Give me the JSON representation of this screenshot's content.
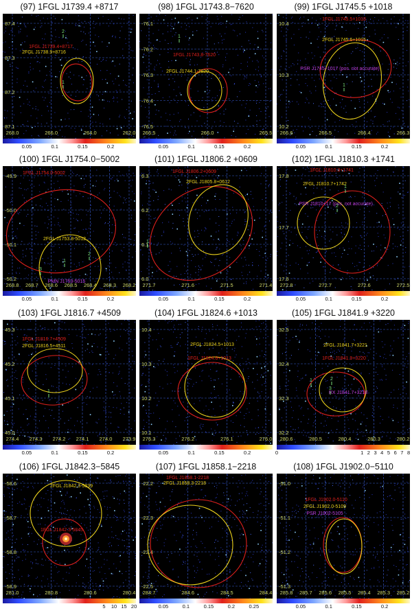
{
  "figure": {
    "panels": [
      {
        "title": "(97) 1FGL J1739.4 +8717",
        "y_ticks": [
          "87.4",
          "87.3",
          "87.2",
          "87.1"
        ],
        "x_ticks": [
          "268.0",
          "266.0",
          "264.0",
          "262.0"
        ],
        "sources": [
          {
            "label": "1FGL J1739.4+8717",
            "color": "#e0201c"
          },
          {
            "label": "2FGL J1738.9+8716",
            "color": "#ecd21c"
          }
        ],
        "markers": [
          "2",
          "1"
        ],
        "colorbar": {
          "ticks": [
            "0.05",
            "0.1",
            "0.15",
            "0.2"
          ]
        }
      },
      {
        "title": "(98) 1FGL J1743.8−7620",
        "y_ticks": [
          "-76.1",
          "-76.2",
          "-76.3",
          "-76.4",
          "-76.5"
        ],
        "x_ticks": [
          "266.5",
          "266.0",
          "265.5"
        ],
        "sources": [
          {
            "label": "1FGL J1743.8-7620",
            "color": "#e0201c"
          },
          {
            "label": "2FGL J1744.1-7620",
            "color": "#ecd21c"
          }
        ],
        "markers": [
          "1"
        ],
        "colorbar": {
          "ticks": [
            "0.05",
            "0.1",
            "0.15",
            "0.2"
          ]
        }
      },
      {
        "title": "(99) 1FGL J1745.5 +1018",
        "y_ticks": [
          "10.4",
          "10.3",
          "10.2"
        ],
        "x_ticks": [
          "266.6",
          "266.5",
          "266.4",
          "266.3"
        ],
        "sources": [
          {
            "label": "1FGL J1745.5+1018",
            "color": "#e0201c"
          },
          {
            "label": "2FGL J1745.6+1015",
            "color": "#ecd21c"
          },
          {
            "label": "PSR J1745+1017 (pos. not accurate)",
            "color": "#c040e0"
          }
        ],
        "markers": [
          "1"
        ],
        "colorbar": {
          "ticks": [
            "0.05",
            "0.1",
            "0.15",
            "0.2"
          ]
        }
      },
      {
        "title": "(100) 1FGL J1754.0−5002",
        "y_ticks": [
          "-49.9",
          "-50.0",
          "-50.1",
          "-50.2"
        ],
        "x_ticks": [
          "268.8",
          "268.7",
          "268.6",
          "268.5",
          "268.4",
          "268.3",
          "268.2"
        ],
        "sources": [
          {
            "label": "1FGL J1754.0-5002",
            "color": "#e0201c"
          },
          {
            "label": "2FGL J1753.8-5012",
            "color": "#ecd21c"
          },
          {
            "label": "PMN J1753-5015",
            "color": "#c040e0"
          }
        ],
        "markers": [
          "2",
          "1",
          "3"
        ],
        "colorbar": {
          "ticks": [
            "0.05",
            "0.1",
            "0.15",
            "0.2"
          ]
        }
      },
      {
        "title": "(101) 1FGL J1806.2 +0609",
        "y_ticks": [
          "6.3",
          "6.2",
          "6.1",
          "6.0"
        ],
        "x_ticks": [
          "271.7",
          "271.6",
          "271.5",
          "271.4"
        ],
        "sources": [
          {
            "label": "1FGL J1806.2+0609",
            "color": "#e0201c"
          },
          {
            "label": "2FGL J1805.8+0612",
            "color": "#ecd21c"
          }
        ],
        "markers": [
          "1"
        ],
        "colorbar": {
          "ticks": [
            "0.05",
            "0.1",
            "0.15",
            "0.2"
          ]
        }
      },
      {
        "title": "(102) 1FGL J1810.3 +1741",
        "y_ticks": [
          "17.8",
          "17.7",
          "17.6"
        ],
        "x_ticks": [
          "272.8",
          "272.7",
          "272.6",
          "272.5"
        ],
        "sources": [
          {
            "label": "1FGL J1810.3+1741",
            "color": "#e0201c"
          },
          {
            "label": "2FGL J1810.7+1742",
            "color": "#ecd21c"
          },
          {
            "label": "PSR J1810+17 (pos. not accurate)",
            "color": "#c040e0"
          }
        ],
        "markers": [
          "1",
          "2"
        ],
        "colorbar": {
          "ticks": [
            "0.05",
            "0.1",
            "0.15",
            "0.2"
          ]
        }
      },
      {
        "title": "(103) 1FGL J1816.7 +4509",
        "y_ticks": [
          "45.3",
          "45.2",
          "45.1",
          "45.0"
        ],
        "x_ticks": [
          "274.4",
          "274.3",
          "274.2",
          "274.1",
          "274.0",
          "273.9"
        ],
        "sources": [
          {
            "label": "1FGL J1816.7+4509",
            "color": "#e0201c"
          },
          {
            "label": "2FGL J1816.5+4511",
            "color": "#ecd21c"
          }
        ],
        "markers": [
          "1"
        ],
        "colorbar": {
          "ticks": [
            "0.05",
            "0.1",
            "0.15",
            "0.2"
          ]
        }
      },
      {
        "title": "(104) 1FGL J1824.6 +1013",
        "y_ticks": [
          "10.4",
          "10.3",
          "10.2",
          "10.1"
        ],
        "x_ticks": [
          "276.3",
          "276.2",
          "276.1",
          "276.0"
        ],
        "sources": [
          {
            "label": "2FGL J1824.5+1013",
            "color": "#ecd21c"
          },
          {
            "label": "1FGL J1824.6+1013",
            "color": "#e0201c"
          }
        ],
        "markers": [],
        "colorbar": {
          "ticks": [
            "0.05",
            "0.1",
            "0.15",
            "0.2"
          ]
        }
      },
      {
        "title": "(105) 1FGL J1841.9 +3220",
        "y_ticks": [
          "32.5",
          "32.4",
          "32.3",
          "32.2"
        ],
        "x_ticks": [
          "280.6",
          "280.5",
          "280.4",
          "280.3",
          "280.2"
        ],
        "sources": [
          {
            "label": "2FGL J1841.7+3221",
            "color": "#ecd21c"
          },
          {
            "label": "1FGL J1841.9+3220",
            "color": "#e0201c"
          },
          {
            "label": "RX J1841.7+3218",
            "color": "#c040e0"
          }
        ],
        "markers": [
          "1",
          "2",
          "3"
        ],
        "colorbar": {
          "ticks": [
            "0",
            "1",
            "2",
            "3",
            "4",
            "5",
            "6",
            "7",
            "8"
          ]
        }
      },
      {
        "title": "(106) 1FGL J1842.3−5845",
        "y_ticks": [
          "-58.6",
          "-58.7",
          "-58.8",
          "-58.9"
        ],
        "x_ticks": [
          "281.0",
          "280.8",
          "280.6",
          "280.4"
        ],
        "sources": [
          {
            "label": "2FGL J1842.3-5839",
            "color": "#ecd21c"
          },
          {
            "label": "1FGL J1842.3-5845",
            "color": "#e0201c"
          }
        ],
        "markers": [],
        "colorbar": {
          "ticks": [
            "5",
            "10",
            "15",
            "20"
          ]
        }
      },
      {
        "title": "(107) 1FGL J1858.1−2218",
        "y_ticks": [
          "-22.2",
          "-22.3",
          "-22.4",
          "-22.5"
        ],
        "x_ticks": [
          "284.7",
          "284.6",
          "284.5",
          "284.4"
        ],
        "sources": [
          {
            "label": "1FGL J1858.1-2218",
            "color": "#e0201c"
          },
          {
            "label": "2FGL J1858.3-2218",
            "color": "#ecd21c"
          }
        ],
        "markers": [],
        "colorbar": {
          "ticks": [
            "0.05",
            "0.1",
            "0.15",
            "0.2",
            "0.25"
          ]
        }
      },
      {
        "title": "(108) 1FGL J1902.0−5110",
        "y_ticks": [
          "-51.0",
          "-51.1",
          "-51.2",
          "-51.3"
        ],
        "x_ticks": [
          "285.8",
          "285.7",
          "285.6",
          "285.5",
          "285.4",
          "285.3",
          "285.2"
        ],
        "sources": [
          {
            "label": "1FGL J1902.0-5110",
            "color": "#e0201c"
          },
          {
            "label": "2FGL J1902.0-5109",
            "color": "#ecd21c"
          },
          {
            "label": "PSR J1902-5105",
            "color": "#c040e0"
          }
        ],
        "markers": [],
        "colorbar": {
          "ticks": [
            "0.05",
            "0.1",
            "0.15",
            "0.2"
          ]
        }
      }
    ],
    "colors": {
      "red_ellipse": "#e0201c",
      "yellow_ellipse": "#ecd21c",
      "grid": "#3a5fd8",
      "tick_label": "#cfd86a",
      "marker": "#7ae07a"
    }
  }
}
